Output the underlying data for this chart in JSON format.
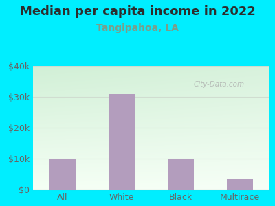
{
  "title": "Median per capita income in 2022",
  "subtitle": "Tangipahoa, LA",
  "categories": [
    "All",
    "White",
    "Black",
    "Multirace"
  ],
  "values": [
    9800,
    31000,
    9800,
    3500
  ],
  "bar_color": "#b39dbd",
  "title_color": "#2d2d2d",
  "subtitle_color": "#7a9e8a",
  "tick_color": "#666666",
  "background_outer": "#00eeff",
  "ylim": [
    0,
    40000
  ],
  "yticks": [
    0,
    10000,
    20000,
    30000,
    40000
  ],
  "ytick_labels": [
    "$0",
    "$10k",
    "$20k",
    "$30k",
    "$40k"
  ],
  "watermark": "City-Data.com",
  "title_fontsize": 13,
  "subtitle_fontsize": 10,
  "tick_fontsize": 9,
  "grid_color": "#d0ddd0"
}
